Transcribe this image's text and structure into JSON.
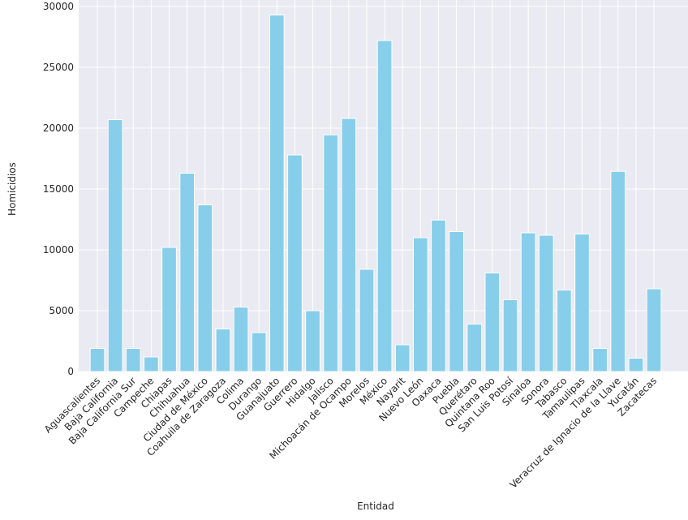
{
  "chart_data": {
    "type": "bar",
    "title": "",
    "xlabel": "Entidad",
    "ylabel": "Homicidios",
    "ylim": [
      0,
      30700
    ],
    "yticks": [
      0,
      5000,
      10000,
      15000,
      20000,
      25000,
      30000
    ],
    "grid": true,
    "bar_color": "#87ceeb",
    "background_color": "#eaeaf2",
    "categories": [
      "Aguascalientes",
      "Baja California",
      "Baja California Sur",
      "Campeche",
      "Chiapas",
      "Chihuahua",
      "Ciudad de México",
      "Coahuila de Zaragoza",
      "Colima",
      "Durango",
      "Guanajuato",
      "Guerrero",
      "Hidalgo",
      "Jalisco",
      "Michoacán de Ocampo",
      "Morelos",
      "México",
      "Nayarit",
      "Nuevo León",
      "Oaxaca",
      "Puebla",
      "Querétaro",
      "Quintana Roo",
      "San Luis Potosí",
      "Sinaloa",
      "Sonora",
      "Tabasco",
      "Tamaulipas",
      "Tlaxcala",
      "Veracruz de Ignacio de la Llave",
      "Yucatán",
      "Zacatecas"
    ],
    "values": [
      1900,
      20700,
      1900,
      1200,
      10200,
      16300,
      13700,
      3500,
      5300,
      3200,
      29300,
      17800,
      5000,
      19450,
      20800,
      8400,
      27200,
      2200,
      11000,
      12450,
      11500,
      3900,
      8100,
      5900,
      11400,
      11200,
      6700,
      11300,
      1900,
      16450,
      1100,
      6800
    ]
  }
}
